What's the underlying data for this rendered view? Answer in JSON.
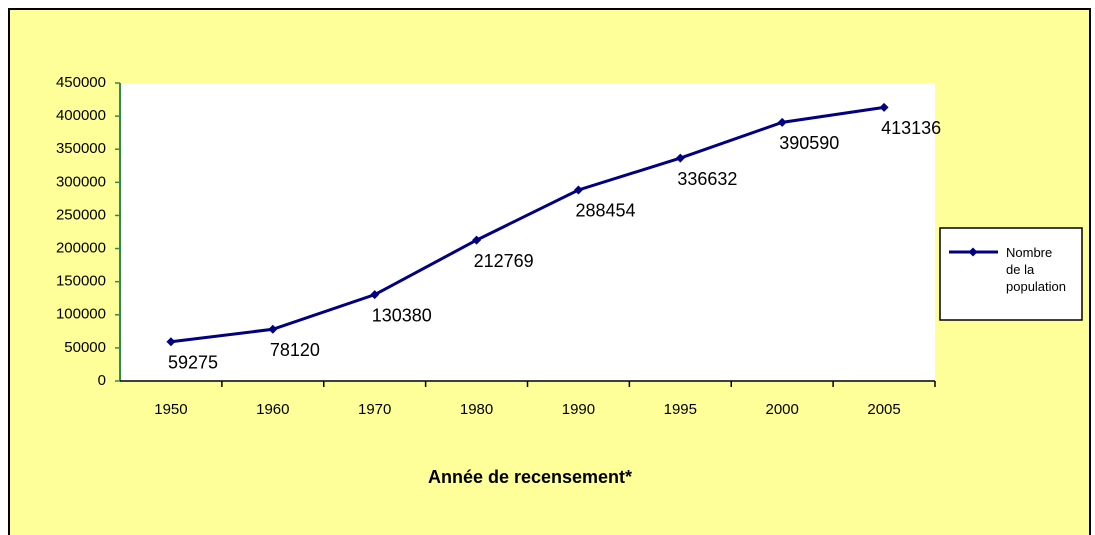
{
  "chart_data": {
    "type": "line",
    "xlabel": "Année de recensement*",
    "categories": [
      "1950",
      "1960",
      "1970",
      "1980",
      "1990",
      "1995",
      "2000",
      "2005"
    ],
    "series": [
      {
        "name": "Nombre de la population",
        "color": "#000080",
        "values": [
          59275,
          78120,
          130380,
          212769,
          288454,
          336632,
          390590,
          413136
        ],
        "value_label_colors": [
          "#3333ff",
          "#000000",
          "#3333ff",
          "#000000",
          "#3333ff",
          "#000000",
          "#3333ff",
          "#000000"
        ]
      }
    ],
    "ylim": [
      0,
      450000
    ],
    "yticks": [
      0,
      50000,
      100000,
      150000,
      200000,
      250000,
      300000,
      350000,
      400000,
      450000
    ],
    "legend": "right"
  }
}
